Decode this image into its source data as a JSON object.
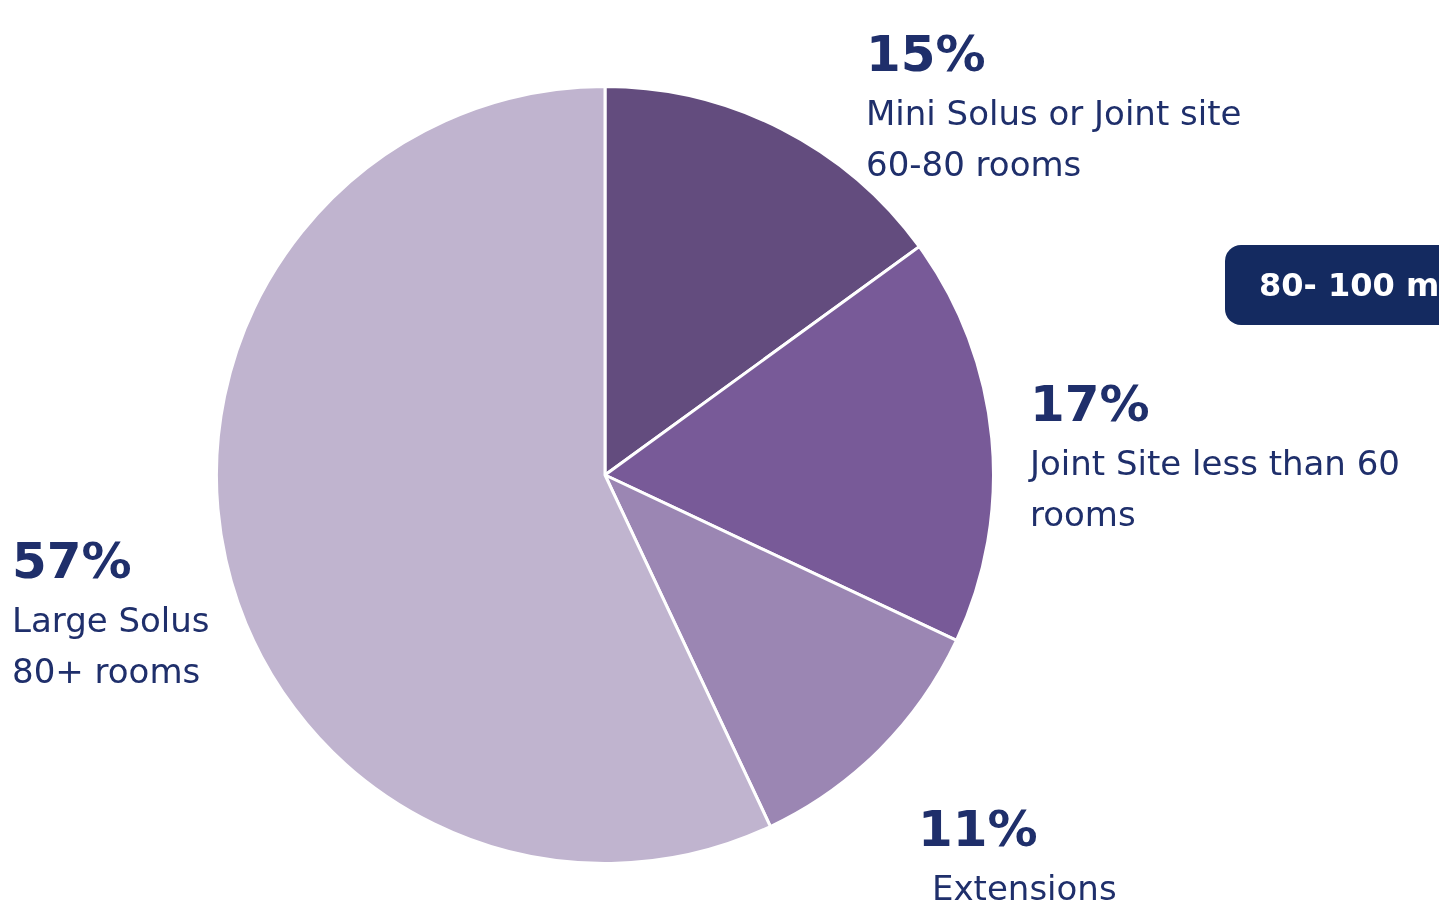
{
  "chart_data": {
    "type": "pie",
    "categories": [
      "Mini Solus or Joint site 60-80 rooms",
      "Joint Site less than 60 rooms",
      "Extensions",
      "Large Solus 80+ rooms"
    ],
    "values": [
      15,
      17,
      11,
      57
    ],
    "colors": [
      "#634c7e",
      "#785a98",
      "#9b86b3",
      "#c0b4cf"
    ],
    "value_labels": [
      "15%",
      "17%",
      "11%",
      "57%"
    ],
    "annotations": [
      "80- 100 m"
    ],
    "legend": false
  }
}
